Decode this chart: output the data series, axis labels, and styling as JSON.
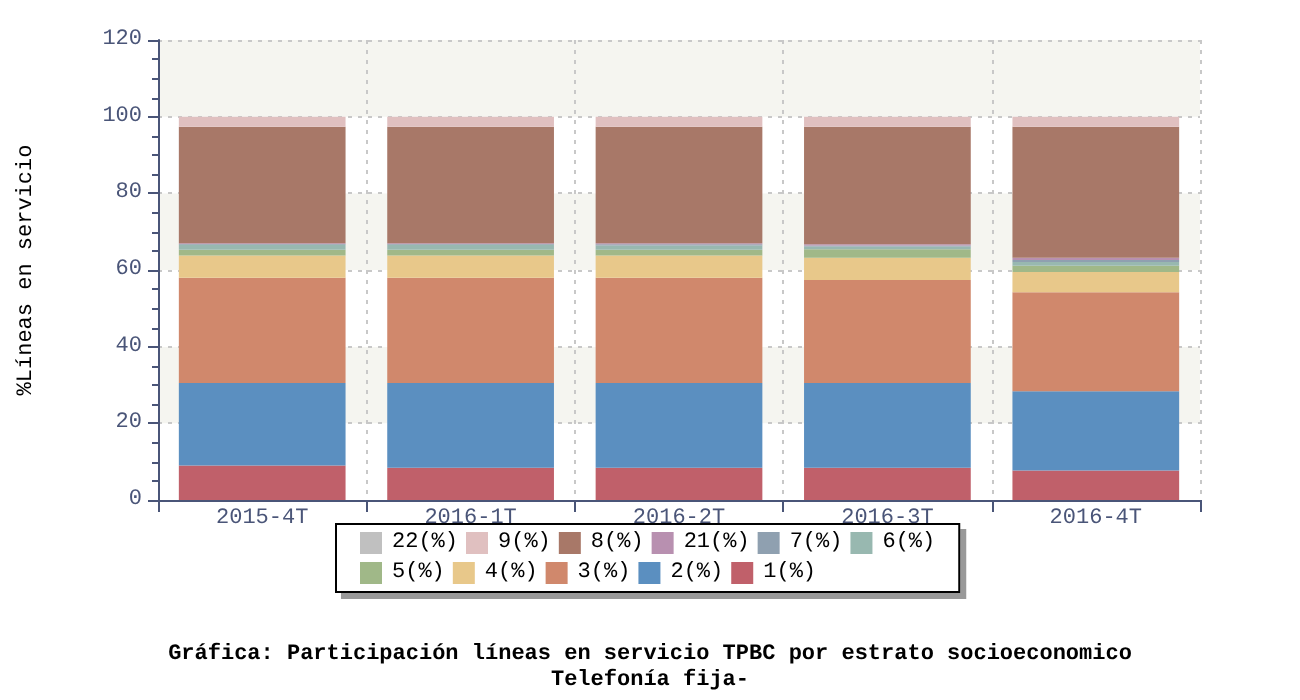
{
  "chart_data": {
    "type": "bar",
    "stacked": true,
    "title": "Gráfica: Participación líneas en servicio TPBC por estrato socioeconomico",
    "subtitle": "Telefonía fija-",
    "ylabel": "%Líneas en servicio",
    "categories": [
      "2015-4T",
      "2016-1T",
      "2016-2T",
      "2016-3T",
      "2016-4T"
    ],
    "series": [
      {
        "name": "1(%)",
        "color": "#c0606a",
        "values": [
          9.0,
          8.4,
          8.4,
          8.4,
          7.7
        ]
      },
      {
        "name": "2(%)",
        "color": "#5b8fc0",
        "values": [
          21.5,
          22.1,
          22.1,
          22.1,
          20.7
        ]
      },
      {
        "name": "3(%)",
        "color": "#d0886c",
        "values": [
          27.5,
          27.5,
          27.5,
          26.9,
          25.8
        ]
      },
      {
        "name": "4(%)",
        "color": "#e8c88a",
        "values": [
          5.8,
          5.8,
          5.8,
          5.8,
          5.3
        ]
      },
      {
        "name": "5(%)",
        "color": "#a0b888",
        "values": [
          1.5,
          1.5,
          1.5,
          2.2,
          1.6
        ]
      },
      {
        "name": "6(%)",
        "color": "#98b8b0",
        "values": [
          1.3,
          1.3,
          1.1,
          0.7,
          1.0
        ]
      },
      {
        "name": "7(%)",
        "color": "#8fa0b0",
        "values": [
          0.2,
          0.2,
          0.3,
          0.3,
          0.5
        ]
      },
      {
        "name": "21(%)",
        "color": "#b890b0",
        "values": [
          0.2,
          0.2,
          0.3,
          0.3,
          0.6
        ]
      },
      {
        "name": "8(%)",
        "color": "#a87868",
        "values": [
          30.4,
          30.4,
          30.4,
          30.7,
          34.2
        ]
      },
      {
        "name": "9(%)",
        "color": "#e0c0c0",
        "values": [
          2.6,
          2.6,
          2.6,
          2.6,
          2.6
        ]
      },
      {
        "name": "22(%)",
        "color": "#c0c0c0",
        "values": [
          0,
          0,
          0,
          0,
          0
        ]
      }
    ],
    "ylim": [
      0,
      120
    ],
    "yticks": [
      0,
      20,
      40,
      60,
      80,
      100,
      120
    ],
    "grid": true,
    "legend": "bottom"
  }
}
